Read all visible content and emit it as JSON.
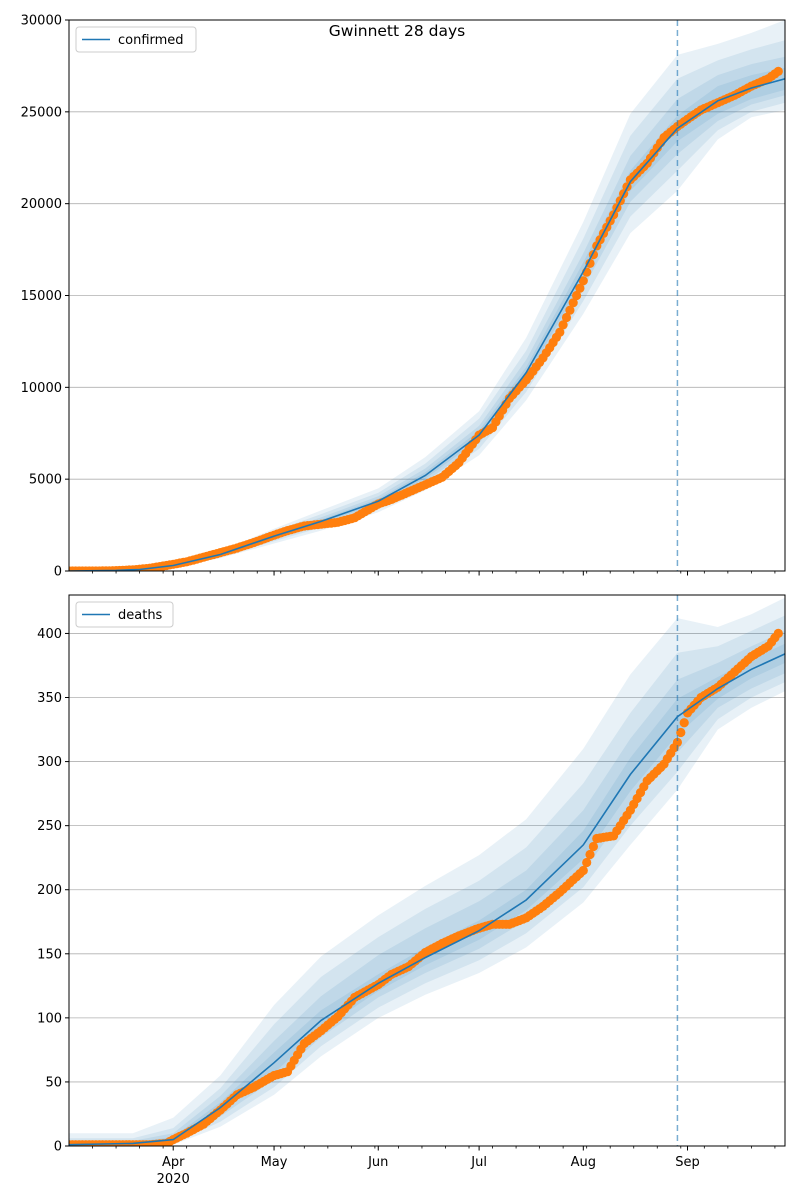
{
  "title": "Gwinnett 28 days",
  "colors": {
    "model": "#1f77b4",
    "observed": "#ff7f0e",
    "band": "#1f77b4",
    "grid": "#b0b0b0",
    "forecast_line": "#1f77b4"
  },
  "x_axis": {
    "start": "2020-03-01",
    "end": "2020-09-30",
    "ticks": [
      {
        "date": "2020-04-01",
        "label": "Apr",
        "sublabel": "2020"
      },
      {
        "date": "2020-05-01",
        "label": "May",
        "sublabel": ""
      },
      {
        "date": "2020-06-01",
        "label": "Jun",
        "sublabel": ""
      },
      {
        "date": "2020-07-01",
        "label": "Jul",
        "sublabel": ""
      },
      {
        "date": "2020-08-01",
        "label": "Aug",
        "sublabel": ""
      },
      {
        "date": "2020-09-01",
        "label": "Sep",
        "sublabel": ""
      }
    ],
    "minor_tick_days": 7
  },
  "forecast_start": "2020-08-29",
  "chart_data": [
    {
      "type": "line",
      "series_name": "confirmed",
      "legend_placement": "top-left",
      "grid": "y",
      "ylim": [
        0,
        30000
      ],
      "yticks": [
        {
          "value": 0,
          "label": "0"
        },
        {
          "value": 5000,
          "label": "5000"
        },
        {
          "value": 10000,
          "label": "10000"
        },
        {
          "value": 15000,
          "label": "15000"
        },
        {
          "value": 20000,
          "label": "20000"
        },
        {
          "value": 25000,
          "label": "25000"
        },
        {
          "value": 30000,
          "label": "30000"
        }
      ],
      "model": {
        "x": [
          "2020-03-01",
          "2020-03-15",
          "2020-03-22",
          "2020-04-01",
          "2020-04-15",
          "2020-05-01",
          "2020-05-15",
          "2020-06-01",
          "2020-06-15",
          "2020-07-01",
          "2020-07-15",
          "2020-08-01",
          "2020-08-15",
          "2020-08-29",
          "2020-09-10",
          "2020-09-20",
          "2020-09-30"
        ],
        "y": [
          0,
          30,
          80,
          300,
          900,
          1900,
          2700,
          3800,
          5200,
          7400,
          10800,
          16300,
          21200,
          24100,
          25600,
          26300,
          26800
        ]
      },
      "bands": [
        {
          "lower": [
            0,
            20,
            50,
            200,
            700,
            1500,
            2200,
            3200,
            4400,
            6300,
            9300,
            14000,
            18400,
            20700,
            23500,
            24700,
            25100
          ],
          "upper": [
            0,
            40,
            110,
            400,
            1100,
            2300,
            3300,
            4500,
            6200,
            8700,
            12700,
            19000,
            24900,
            28100,
            28700,
            29300,
            30000
          ]
        },
        {
          "lower": [
            0,
            22,
            60,
            230,
            760,
            1620,
            2370,
            3400,
            4650,
            6650,
            9750,
            14700,
            19300,
            21800,
            24000,
            25000,
            25500
          ],
          "upper": [
            0,
            37,
            100,
            370,
            1040,
            2180,
            3100,
            4260,
            5850,
            8300,
            12000,
            18100,
            23700,
            26800,
            27800,
            28400,
            28900
          ]
        },
        {
          "lower": [
            0,
            25,
            67,
            260,
            820,
            1740,
            2500,
            3550,
            4850,
            6950,
            10200,
            15400,
            20100,
            22700,
            24500,
            25400,
            25900
          ],
          "upper": [
            0,
            35,
            93,
            345,
            985,
            2070,
            2920,
            4070,
            5580,
            7900,
            11500,
            17300,
            22600,
            25700,
            27000,
            27600,
            28000
          ]
        },
        {
          "lower": [
            0,
            27,
            72,
            280,
            860,
            1820,
            2600,
            3680,
            5020,
            7170,
            10500,
            15850,
            20700,
            23400,
            24900,
            25700,
            26200
          ],
          "upper": [
            0,
            33,
            88,
            325,
            945,
            1980,
            2800,
            3930,
            5380,
            7650,
            11100,
            16800,
            21800,
            24800,
            26400,
            27000,
            27400
          ]
        }
      ],
      "observed": {
        "x": [
          "2020-03-01",
          "2020-03-10",
          "2020-03-15",
          "2020-03-20",
          "2020-03-25",
          "2020-03-30",
          "2020-04-05",
          "2020-04-10",
          "2020-04-15",
          "2020-04-20",
          "2020-04-25",
          "2020-05-01",
          "2020-05-05",
          "2020-05-10",
          "2020-05-15",
          "2020-05-20",
          "2020-05-25",
          "2020-06-01",
          "2020-06-05",
          "2020-06-10",
          "2020-06-15",
          "2020-06-20",
          "2020-06-25",
          "2020-07-01",
          "2020-07-05",
          "2020-07-10",
          "2020-07-15",
          "2020-07-20",
          "2020-07-25",
          "2020-08-01",
          "2020-08-05",
          "2020-08-10",
          "2020-08-15",
          "2020-08-20",
          "2020-08-25",
          "2020-08-29",
          "2020-09-01",
          "2020-09-05",
          "2020-09-10",
          "2020-09-15",
          "2020-09-20",
          "2020-09-25",
          "2020-09-28"
        ],
        "y": [
          0,
          0,
          20,
          60,
          150,
          300,
          500,
          750,
          1000,
          1250,
          1550,
          1950,
          2200,
          2450,
          2550,
          2650,
          2900,
          3650,
          3900,
          4300,
          4700,
          5100,
          5900,
          7400,
          7800,
          9400,
          10400,
          11600,
          13000,
          15800,
          17700,
          19400,
          21300,
          22200,
          23600,
          24200,
          24600,
          25100,
          25500,
          25900,
          26400,
          26800,
          27200
        ]
      }
    },
    {
      "type": "line",
      "series_name": "deaths",
      "legend_placement": "top-left",
      "grid": "y",
      "ylim": [
        0,
        430
      ],
      "yticks": [
        {
          "value": 0,
          "label": "0"
        },
        {
          "value": 50,
          "label": "50"
        },
        {
          "value": 100,
          "label": "100"
        },
        {
          "value": 150,
          "label": "150"
        },
        {
          "value": 200,
          "label": "200"
        },
        {
          "value": 250,
          "label": "250"
        },
        {
          "value": 300,
          "label": "300"
        },
        {
          "value": 350,
          "label": "350"
        },
        {
          "value": 400,
          "label": "400"
        }
      ],
      "model": {
        "x": [
          "2020-03-01",
          "2020-03-20",
          "2020-04-01",
          "2020-04-15",
          "2020-05-01",
          "2020-05-15",
          "2020-06-01",
          "2020-06-15",
          "2020-07-01",
          "2020-07-15",
          "2020-08-01",
          "2020-08-15",
          "2020-08-29",
          "2020-09-10",
          "2020-09-20",
          "2020-09-30"
        ],
        "y": [
          1,
          2,
          5,
          30,
          65,
          98,
          127,
          147,
          168,
          192,
          235,
          290,
          335,
          357,
          372,
          384
        ]
      },
      "bands": [
        {
          "lower": [
            0,
            0,
            1,
            15,
            40,
            70,
            100,
            118,
            135,
            155,
            190,
            235,
            278,
            325,
            342,
            355
          ],
          "upper": [
            10,
            10,
            22,
            55,
            110,
            148,
            180,
            203,
            227,
            255,
            310,
            368,
            412,
            405,
            415,
            428
          ]
        },
        {
          "lower": [
            0,
            0,
            2,
            19,
            46,
            78,
            108,
            127,
            145,
            166,
            202,
            250,
            292,
            333,
            350,
            362
          ],
          "upper": [
            6,
            6,
            14,
            45,
            95,
            132,
            163,
            185,
            207,
            233,
            283,
            338,
            385,
            390,
            402,
            414
          ]
        },
        {
          "lower": [
            0,
            1,
            3,
            23,
            52,
            85,
            116,
            135,
            154,
            176,
            214,
            265,
            307,
            342,
            357,
            369
          ],
          "upper": [
            4,
            4,
            10,
            39,
            82,
            117,
            149,
            170,
            191,
            215,
            262,
            318,
            364,
            377,
            390,
            402
          ]
        },
        {
          "lower": [
            0,
            1,
            4,
            26,
            57,
            91,
            121,
            141,
            161,
            184,
            224,
            277,
            321,
            349,
            365,
            377
          ],
          "upper": [
            2,
            3,
            7,
            34,
            73,
            106,
            134,
            155,
            176,
            200,
            246,
            303,
            349,
            366,
            380,
            392
          ]
        }
      ],
      "observed": {
        "x": [
          "2020-03-01",
          "2020-03-15",
          "2020-03-25",
          "2020-03-30",
          "2020-04-01",
          "2020-04-05",
          "2020-04-10",
          "2020-04-15",
          "2020-04-20",
          "2020-04-25",
          "2020-05-01",
          "2020-05-05",
          "2020-05-10",
          "2020-05-15",
          "2020-05-20",
          "2020-05-25",
          "2020-06-01",
          "2020-06-05",
          "2020-06-10",
          "2020-06-15",
          "2020-06-20",
          "2020-06-25",
          "2020-07-01",
          "2020-07-05",
          "2020-07-10",
          "2020-07-15",
          "2020-07-20",
          "2020-07-25",
          "2020-08-01",
          "2020-08-05",
          "2020-08-10",
          "2020-08-15",
          "2020-08-20",
          "2020-08-25",
          "2020-08-29",
          "2020-09-01",
          "2020-09-05",
          "2020-09-10",
          "2020-09-15",
          "2020-09-20",
          "2020-09-25",
          "2020-09-28"
        ],
        "y": [
          1,
          1,
          1,
          2,
          5,
          10,
          17,
          28,
          40,
          46,
          55,
          58,
          80,
          90,
          101,
          116,
          126,
          134,
          140,
          151,
          158,
          164,
          170,
          173,
          173,
          178,
          187,
          198,
          215,
          240,
          242,
          262,
          285,
          298,
          315,
          338,
          350,
          358,
          370,
          382,
          390,
          400
        ]
      }
    }
  ]
}
